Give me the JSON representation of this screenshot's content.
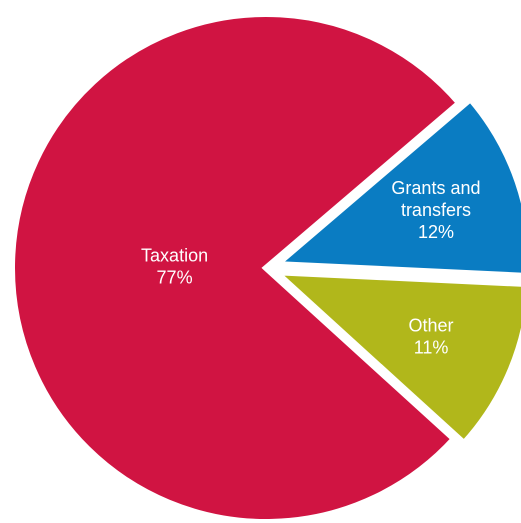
{
  "chart_data": {
    "type": "pie",
    "title": "",
    "slices": [
      {
        "label_lines": [
          "Grants and",
          "transfers"
        ],
        "percent_label": "12%",
        "value": 12,
        "color": "#0a7cc2"
      },
      {
        "label_lines": [
          "Other"
        ],
        "percent_label": "11%",
        "value": 11,
        "color": "#b1b71b"
      },
      {
        "label_lines": [
          "Taxation"
        ],
        "percent_label": "77%",
        "value": 77,
        "color": "#d01442"
      }
    ]
  }
}
